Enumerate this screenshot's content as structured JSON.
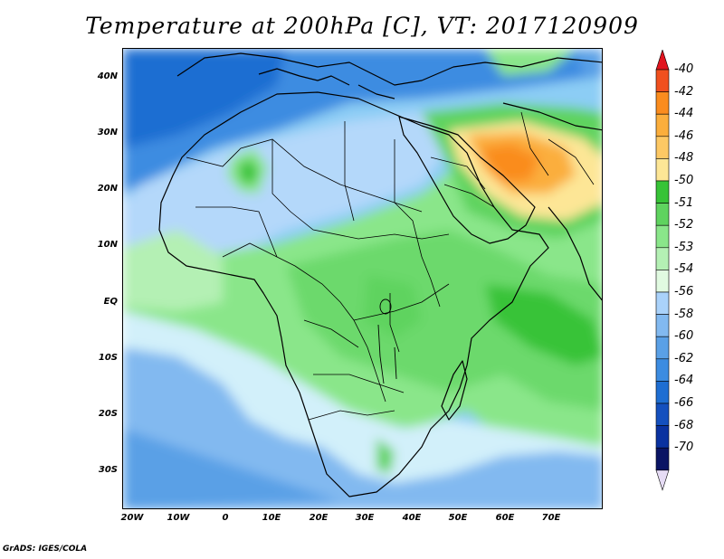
{
  "title": "Temperature at 200hPa [C], VT: 2017120909",
  "footer": "GrADS: IGES/COLA",
  "map": {
    "projection": "latlon",
    "lon_range": [
      -23,
      80
    ],
    "lat_range": [
      -37,
      45
    ],
    "y_ticks": [
      "40N",
      "30N",
      "20N",
      "10N",
      "EQ",
      "10S",
      "20S",
      "30S"
    ],
    "x_ticks": [
      "20W",
      "10W",
      "0",
      "10E",
      "20E",
      "30E",
      "40E",
      "50E",
      "60E",
      "70E"
    ],
    "features": [
      "coastlines",
      "country-borders"
    ]
  },
  "colorbar": {
    "levels": [
      "-40",
      "-42",
      "-44",
      "-46",
      "-48",
      "-50",
      "-51",
      "-52",
      "-53",
      "-54",
      "-56",
      "-58",
      "-60",
      "-62",
      "-64",
      "-66",
      "-68",
      "-70"
    ],
    "colors": [
      "#e1141e",
      "#f0501e",
      "#fa8c1e",
      "#fbae3c",
      "#fdc864",
      "#fde696",
      "#37c337",
      "#5fd35f",
      "#8ae68a",
      "#b4f0b4",
      "#e1fae1",
      "#aad2fa",
      "#82b9f0",
      "#5aa0e6",
      "#3c8ce1",
      "#1e6ed2",
      "#1450be",
      "#0a32a0",
      "#0a1464",
      "#e6dcf5"
    ],
    "top_arrow_color": "#e1141e",
    "bottom_arrow_color": "#e6dcf5"
  }
}
